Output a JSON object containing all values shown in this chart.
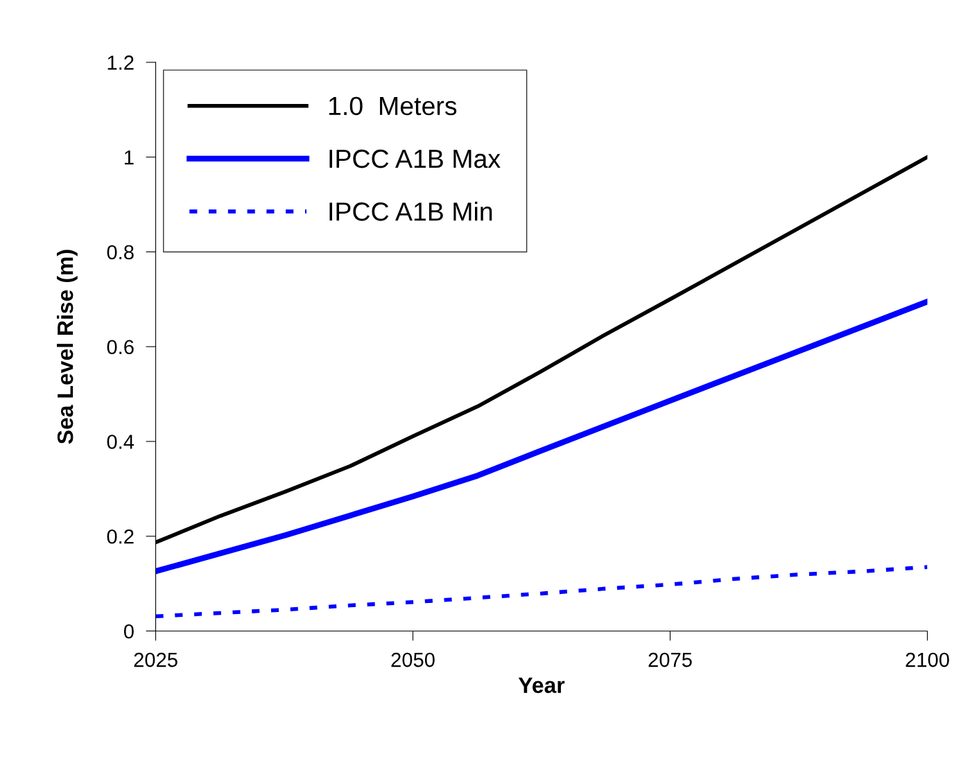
{
  "chart_data": {
    "type": "line",
    "xlabel": "Year",
    "ylabel": "Sea Level Rise (m)",
    "xlim": [
      2025,
      2100
    ],
    "xticks": [
      2025,
      2050,
      2075,
      2100
    ],
    "ylim": [
      0,
      1.2
    ],
    "yticks": [
      0,
      0.2,
      0.4,
      0.6,
      0.8,
      1,
      1.2
    ],
    "grid": false,
    "legend": "top left",
    "marker": "none",
    "series": [
      {
        "name": "1.0  Meters",
        "color": "#000000",
        "line_style": "solid",
        "x": [
          2025,
          2031.3,
          2037.6,
          2043.9,
          2050,
          2056.3,
          2062.4,
          2068.5,
          2075,
          2100
        ],
        "values": [
          0.187,
          0.243,
          0.294,
          0.348,
          0.411,
          0.474,
          0.547,
          0.623,
          0.7,
          1.0
        ]
      },
      {
        "name": "IPCC A1B Max",
        "color": "#0000ff",
        "line_style": "solid",
        "x": [
          2025,
          2037.6,
          2050,
          2056.3,
          2062.4,
          2075,
          2100
        ],
        "values": [
          0.126,
          0.202,
          0.284,
          0.328,
          0.38,
          0.486,
          0.695
        ]
      },
      {
        "name": "IPCC A1B Min",
        "color": "#0000ff",
        "line_style": "dashed",
        "x": [
          2025,
          2031.3,
          2037.6,
          2043.9,
          2050,
          2056.3,
          2062.4,
          2068.5,
          2075,
          2081.3,
          2087.4,
          2093.8,
          2100
        ],
        "values": [
          0.031,
          0.038,
          0.045,
          0.054,
          0.061,
          0.07,
          0.079,
          0.089,
          0.098,
          0.11,
          0.119,
          0.126,
          0.135
        ]
      }
    ]
  }
}
